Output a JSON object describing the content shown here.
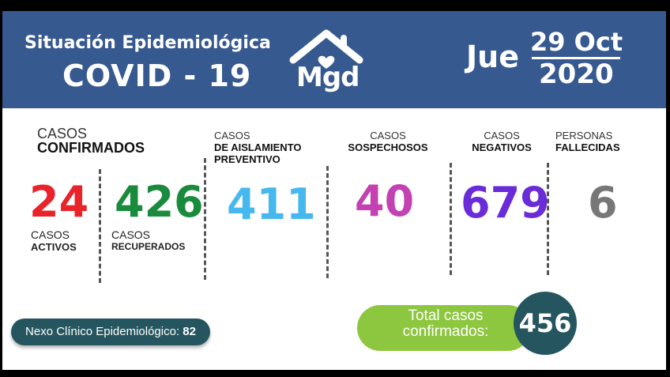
{
  "header": {
    "subtitle": "Situación Epidemiológica",
    "title": "COVID - 19",
    "logo_text": "Mgd",
    "day": "Jue",
    "date_top": "29 Oct",
    "date_bottom": "2020"
  },
  "confirmados": {
    "line1": "CASOS",
    "line2": "CONFIRMADOS"
  },
  "activos": {
    "value": "24",
    "line1": "CASOS",
    "line2": "ACTIVOS",
    "color": "#e8232a"
  },
  "recuperados": {
    "value": "426",
    "line1": "CASOS",
    "line2": "RECUPERADOS",
    "color": "#1a8a3c"
  },
  "aislamiento": {
    "line1": "CASOS",
    "line2": "DE AISLAMIENTO",
    "line3": "PREVENTIVO",
    "value": "411",
    "color": "#47b8ee"
  },
  "sospechosos": {
    "line1": "CASOS",
    "line2": "SOSPECHOSOS",
    "value": "40",
    "color": "#c341b0"
  },
  "negativos": {
    "line1": "CASOS",
    "line2": "NEGATIVOS",
    "value": "679",
    "color": "#6a2bd9"
  },
  "fallecidas": {
    "line1": "PERSONAS",
    "line2": "FALLECIDAS",
    "value": "6",
    "color": "#777777"
  },
  "nexo": {
    "label": "Nexo Clínico Epidemiológico:",
    "value": "82"
  },
  "total": {
    "line1": "Total casos",
    "line2": "confirmados:",
    "value": "456"
  }
}
